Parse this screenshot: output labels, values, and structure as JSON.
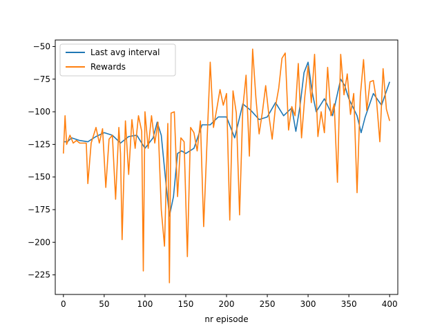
{
  "chart_data": {
    "type": "line",
    "title": "",
    "xlabel": "nr episode",
    "ylabel": "",
    "xlim": [
      -10,
      410
    ],
    "ylim": [
      -240,
      -45
    ],
    "xticks": [
      0,
      50,
      100,
      150,
      200,
      250,
      300,
      350,
      400
    ],
    "yticks": [
      -225,
      -200,
      -175,
      -150,
      -125,
      -100,
      -75,
      -50
    ],
    "grid": false,
    "legend": "top-left",
    "series": [
      {
        "name": "Last avg interval",
        "color": "#1f77b4",
        "x": [
          0,
          5,
          10,
          20,
          30,
          40,
          50,
          60,
          70,
          80,
          90,
          100,
          110,
          115,
          120,
          125,
          130,
          135,
          140,
          145,
          150,
          160,
          170,
          180,
          190,
          200,
          210,
          220,
          230,
          240,
          250,
          260,
          270,
          280,
          285,
          290,
          295,
          300,
          305,
          310,
          320,
          330,
          340,
          345,
          350,
          360,
          365,
          370,
          380,
          390,
          400
        ],
        "values": [
          -123,
          -123,
          -120,
          -122,
          -123,
          -119,
          -116,
          -118,
          -124,
          -119,
          -118,
          -128,
          -120,
          -108,
          -118,
          -150,
          -180,
          -165,
          -132,
          -130,
          -132,
          -128,
          -110,
          -110,
          -104,
          -104,
          -120,
          -94,
          -99,
          -106,
          -104,
          -93,
          -103,
          -97,
          -115,
          -96,
          -70,
          -62,
          -85,
          -100,
          -90,
          -103,
          -75,
          -80,
          -90,
          -103,
          -116,
          -104,
          -86,
          -95,
          -77
        ]
      },
      {
        "name": "Rewards",
        "color": "#ff7f0e",
        "x": [
          0,
          2,
          4,
          8,
          12,
          16,
          20,
          24,
          28,
          30,
          34,
          40,
          44,
          48,
          52,
          56,
          60,
          64,
          68,
          70,
          72,
          76,
          80,
          84,
          88,
          92,
          96,
          98,
          100,
          104,
          108,
          112,
          116,
          120,
          124,
          128,
          130,
          132,
          136,
          140,
          144,
          148,
          152,
          156,
          160,
          164,
          168,
          172,
          176,
          180,
          184,
          188,
          192,
          196,
          200,
          204,
          208,
          212,
          216,
          220,
          224,
          228,
          232,
          236,
          240,
          244,
          248,
          252,
          256,
          260,
          264,
          268,
          272,
          276,
          280,
          284,
          288,
          292,
          296,
          300,
          304,
          308,
          312,
          316,
          320,
          324,
          328,
          332,
          336,
          340,
          344,
          348,
          352,
          356,
          360,
          364,
          368,
          372,
          376,
          380,
          384,
          388,
          392,
          396,
          400
        ],
        "values": [
          -132,
          -103,
          -125,
          -118,
          -124,
          -122,
          -124,
          -124,
          -124,
          -155,
          -124,
          -112,
          -124,
          -113,
          -158,
          -121,
          -118,
          -167,
          -112,
          -132,
          -198,
          -107,
          -148,
          -106,
          -128,
          -103,
          -115,
          -222,
          -100,
          -128,
          -103,
          -124,
          -108,
          -175,
          -203,
          -109,
          -231,
          -101,
          -100,
          -165,
          -120,
          -123,
          -211,
          -112,
          -116,
          -130,
          -107,
          -188,
          -124,
          -62,
          -112,
          -98,
          -83,
          -95,
          -86,
          -183,
          -84,
          -101,
          -179,
          -97,
          -72,
          -134,
          -52,
          -89,
          -117,
          -100,
          -80,
          -103,
          -121,
          -96,
          -82,
          -59,
          -55,
          -114,
          -96,
          -103,
          -63,
          -120,
          -88,
          -65,
          -93,
          -56,
          -119,
          -100,
          -116,
          -66,
          -103,
          -94,
          -154,
          -56,
          -87,
          -71,
          -102,
          -86,
          -162,
          -88,
          -60,
          -99,
          -77,
          -76,
          -92,
          -123,
          -67,
          -98,
          -107
        ]
      }
    ]
  },
  "legend": {
    "entries": [
      "Last avg interval",
      "Rewards"
    ]
  }
}
